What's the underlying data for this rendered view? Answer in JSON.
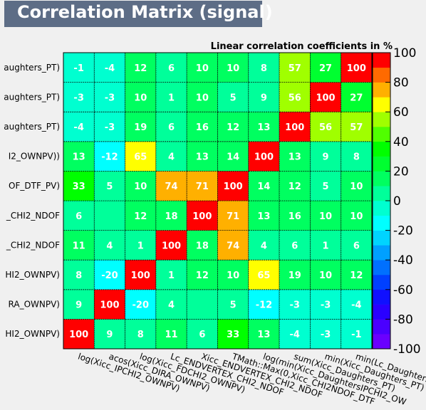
{
  "chart_data": {
    "type": "heatmap",
    "title": "Correlation Matrix (signal)",
    "subtitle": "Linear correlation coefficients in %",
    "variables": [
      "log(Xicc_IPCHI2_OWNPV)",
      "acos(Xicc_DIRA_OWNPV)",
      "log(Xicc_FDCHI2_OWNPV)",
      "Lc_ENDVERTEX_CHI2_NDOF",
      "Xicc_ENDVERTEX_CHI2_NDOF",
      "TMath::Max(0,Xicc_CHI2NDOF_DTF_PV)",
      "log(min(Xicc_DaughtersIPCHI2_OWNPV))",
      "sum(Xicc_Daughters_PT)",
      "min(Xicc_Daughters_PT)",
      "min(Lc_Daughters_PT)"
    ],
    "y_labels_visible": [
      "HI2_OWNPV)",
      "RA_OWNPV)",
      "HI2_OWNPV)",
      "_CHI2_NDOF",
      "_CHI2_NDOF",
      "OF_DTF_PV)",
      "I2_OWNPV))",
      "aughters_PT)",
      "aughters_PT)",
      "aughters_PT)"
    ],
    "x_labels_visible": [
      "log(Xicc_IPCHI2_OWNPV)",
      "acos(Xicc_DIRA_OWNPV)",
      "log(Xicc_FDCHI2_OWNPV)",
      "Lc_ENDVERTEX_CHI2_NDOF",
      "Xicc_ENDVERTEX_CHI2_NDOF",
      "TMath::Max(0,Xicc_CHI2NDOF_DTF",
      "log(min(Xicc_DaughtersIPCHI2_OW",
      "sum(Xicc_Daughters_PT)",
      "min(Xicc_Daughters_PT)",
      "min(Lc_Daughters_PT)"
    ],
    "matrix": [
      [
        100,
        9,
        8,
        11,
        6,
        33,
        13,
        -4,
        -3,
        -1
      ],
      [
        9,
        100,
        -20,
        4,
        0,
        5,
        -12,
        -3,
        -3,
        -4
      ],
      [
        8,
        -20,
        100,
        1,
        12,
        10,
        65,
        19,
        10,
        12
      ],
      [
        11,
        4,
        1,
        100,
        18,
        74,
        4,
        6,
        1,
        6
      ],
      [
        6,
        0,
        12,
        18,
        100,
        71,
        13,
        16,
        10,
        10
      ],
      [
        33,
        5,
        10,
        74,
        71,
        100,
        14,
        12,
        5,
        10
      ],
      [
        13,
        -12,
        65,
        4,
        13,
        14,
        100,
        13,
        9,
        8
      ],
      [
        -4,
        -3,
        19,
        6,
        16,
        12,
        13,
        100,
        56,
        57
      ],
      [
        -3,
        -3,
        10,
        1,
        10,
        5,
        9,
        56,
        100,
        27
      ],
      [
        -1,
        -4,
        12,
        6,
        10,
        10,
        8,
        57,
        27,
        100
      ]
    ],
    "zlim": [
      -100,
      100
    ],
    "colorbar_ticks": [
      100,
      80,
      60,
      40,
      20,
      0,
      -20,
      -40,
      -60,
      -80,
      -100
    ]
  }
}
